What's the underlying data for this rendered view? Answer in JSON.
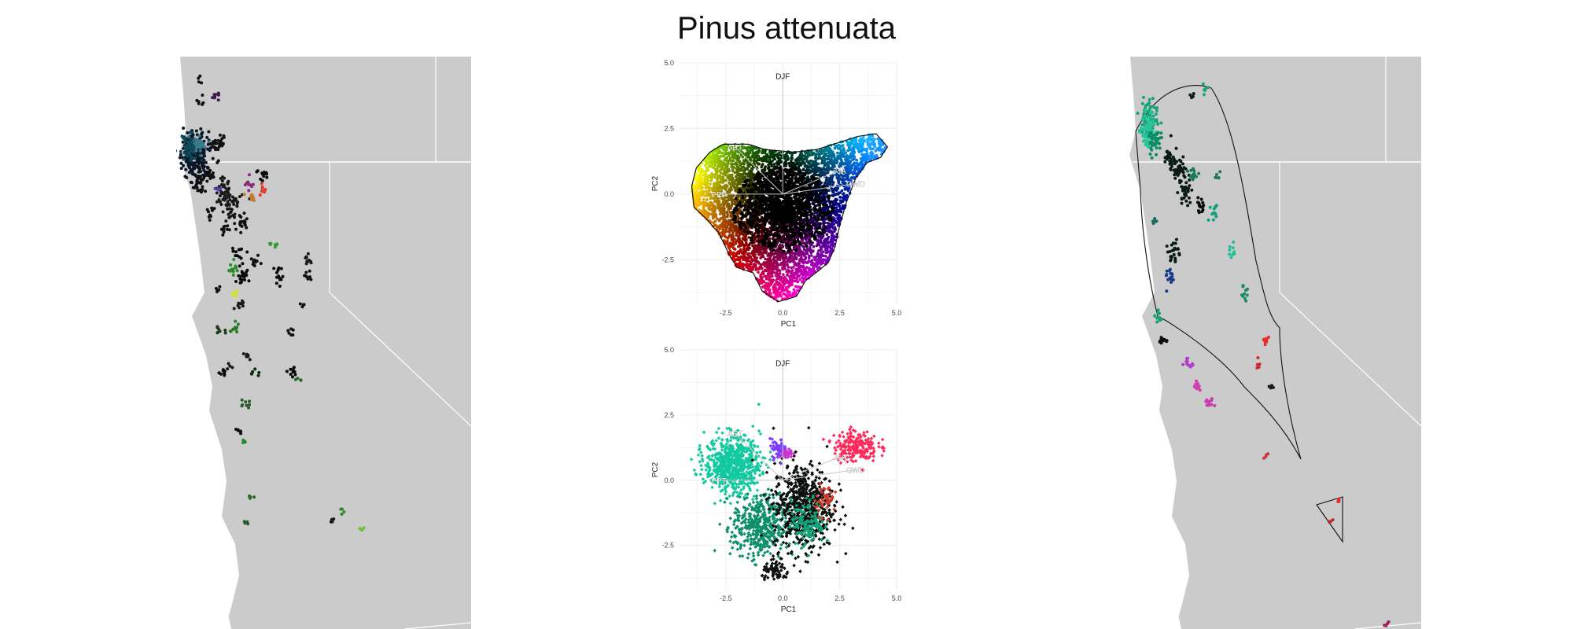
{
  "title": "Pinus attenuata",
  "maps": {
    "left": {
      "region": "California and adjacent Oregon / Nevada",
      "fill": "#cbcbcb",
      "background": "#ffffff"
    },
    "right": {
      "region": "California and adjacent Oregon / Nevada",
      "fill": "#cbcbcb",
      "background": "#ffffff"
    }
  },
  "chart_data": [
    {
      "type": "scatter",
      "panel": "top",
      "title": "",
      "xlabel": "PC1",
      "ylabel": "PC2",
      "xlim": [
        -4.5,
        5.0
      ],
      "ylim": [
        -4.2,
        5.0
      ],
      "xticks": [
        "-2.5",
        "0.0",
        "2.5",
        "5.0"
      ],
      "yticks": [
        "-2.5",
        "0.0",
        "2.5",
        "5.0"
      ],
      "xtick_values": [
        -2.5,
        0,
        2.5,
        5
      ],
      "ytick_values": [
        -2.5,
        0,
        2.5,
        5
      ],
      "grid": true,
      "coloring": "continuous 2D color wheel over PC space; black at origin",
      "hull_outline": true,
      "vectors": [
        {
          "label": "DJF",
          "x": 0.0,
          "y": 4.5
        },
        {
          "label": "AET",
          "x": -2.1,
          "y": 1.8
        },
        {
          "label": "JJA",
          "x": 2.5,
          "y": 0.9
        },
        {
          "label": "CWD",
          "x": 3.2,
          "y": 0.4
        },
        {
          "label": "PPT",
          "x": -2.8,
          "y": 0.0
        }
      ],
      "hull": [
        [
          -3.2,
          1.6
        ],
        [
          -2.6,
          1.9
        ],
        [
          -1.5,
          1.9
        ],
        [
          -0.8,
          1.7
        ],
        [
          0.5,
          1.6
        ],
        [
          1.5,
          1.7
        ],
        [
          2.6,
          2.0
        ],
        [
          3.3,
          2.2
        ],
        [
          4.1,
          2.3
        ],
        [
          4.6,
          1.8
        ],
        [
          4.3,
          1.4
        ],
        [
          3.7,
          1.2
        ],
        [
          3.2,
          0.6
        ],
        [
          2.8,
          -0.3
        ],
        [
          2.5,
          -1.2
        ],
        [
          2.3,
          -2.0
        ],
        [
          2.0,
          -2.6
        ],
        [
          1.6,
          -2.9
        ],
        [
          1.0,
          -3.3
        ],
        [
          0.6,
          -3.9
        ],
        [
          -0.2,
          -4.1
        ],
        [
          -0.9,
          -3.7
        ],
        [
          -1.3,
          -3.0
        ],
        [
          -2.0,
          -2.8
        ],
        [
          -2.3,
          -2.4
        ],
        [
          -2.8,
          -1.5
        ],
        [
          -3.3,
          -1.0
        ],
        [
          -3.9,
          -0.5
        ],
        [
          -4.0,
          0.3
        ],
        [
          -3.8,
          1.0
        ]
      ]
    },
    {
      "type": "scatter",
      "panel": "bottom",
      "title": "",
      "xlabel": "PC1",
      "ylabel": "PC2",
      "xlim": [
        -4.5,
        5.0
      ],
      "ylim": [
        -4.2,
        5.0
      ],
      "xticks": [
        "-2.5",
        "0.0",
        "2.5",
        "5.0"
      ],
      "yticks": [
        "-2.5",
        "0.0",
        "2.5",
        "5.0"
      ],
      "xtick_values": [
        -2.5,
        0,
        2.5,
        5
      ],
      "ytick_values": [
        -2.5,
        0,
        2.5,
        5
      ],
      "grid": true,
      "coloring": "categorical clusters",
      "hull_outline": false,
      "vectors": [
        {
          "label": "DJF",
          "x": 0.0,
          "y": 4.5
        },
        {
          "label": "AET",
          "x": -2.1,
          "y": 1.8
        },
        {
          "label": "JJA",
          "x": 2.5,
          "y": 0.9
        },
        {
          "label": "CWD",
          "x": 3.2,
          "y": 0.4
        },
        {
          "label": "PPT",
          "x": -2.8,
          "y": 0.0
        }
      ],
      "clusters": [
        {
          "color": "#12c9a0",
          "cx": -2.2,
          "cy": 0.6,
          "sx": 1.0,
          "sy": 0.9,
          "n": 700
        },
        {
          "color": "#0e8f6c",
          "cx": -1.0,
          "cy": -1.8,
          "sx": 1.0,
          "sy": 1.0,
          "n": 450
        },
        {
          "color": "#0a0f0d",
          "cx": 0.9,
          "cy": -1.0,
          "sx": 1.1,
          "sy": 1.4,
          "n": 650
        },
        {
          "color": "#12a37a",
          "cx": 1.1,
          "cy": -1.6,
          "sx": 0.6,
          "sy": 0.7,
          "n": 140
        },
        {
          "color": "#ff2a5a",
          "cx": 3.2,
          "cy": 1.3,
          "sx": 0.8,
          "sy": 0.5,
          "n": 200
        },
        {
          "color": "#7a3cff",
          "cx": -0.2,
          "cy": 1.2,
          "sx": 0.3,
          "sy": 0.3,
          "n": 55
        },
        {
          "color": "#cc33cc",
          "cx": 0.2,
          "cy": 1.0,
          "sx": 0.2,
          "sy": 0.2,
          "n": 30
        },
        {
          "color": "#d23a2a",
          "cx": 1.9,
          "cy": -0.7,
          "sx": 0.4,
          "sy": 0.5,
          "n": 45
        },
        {
          "color": "#101010",
          "cx": -0.3,
          "cy": -3.5,
          "sx": 0.5,
          "sy": 0.3,
          "n": 70
        }
      ]
    }
  ]
}
